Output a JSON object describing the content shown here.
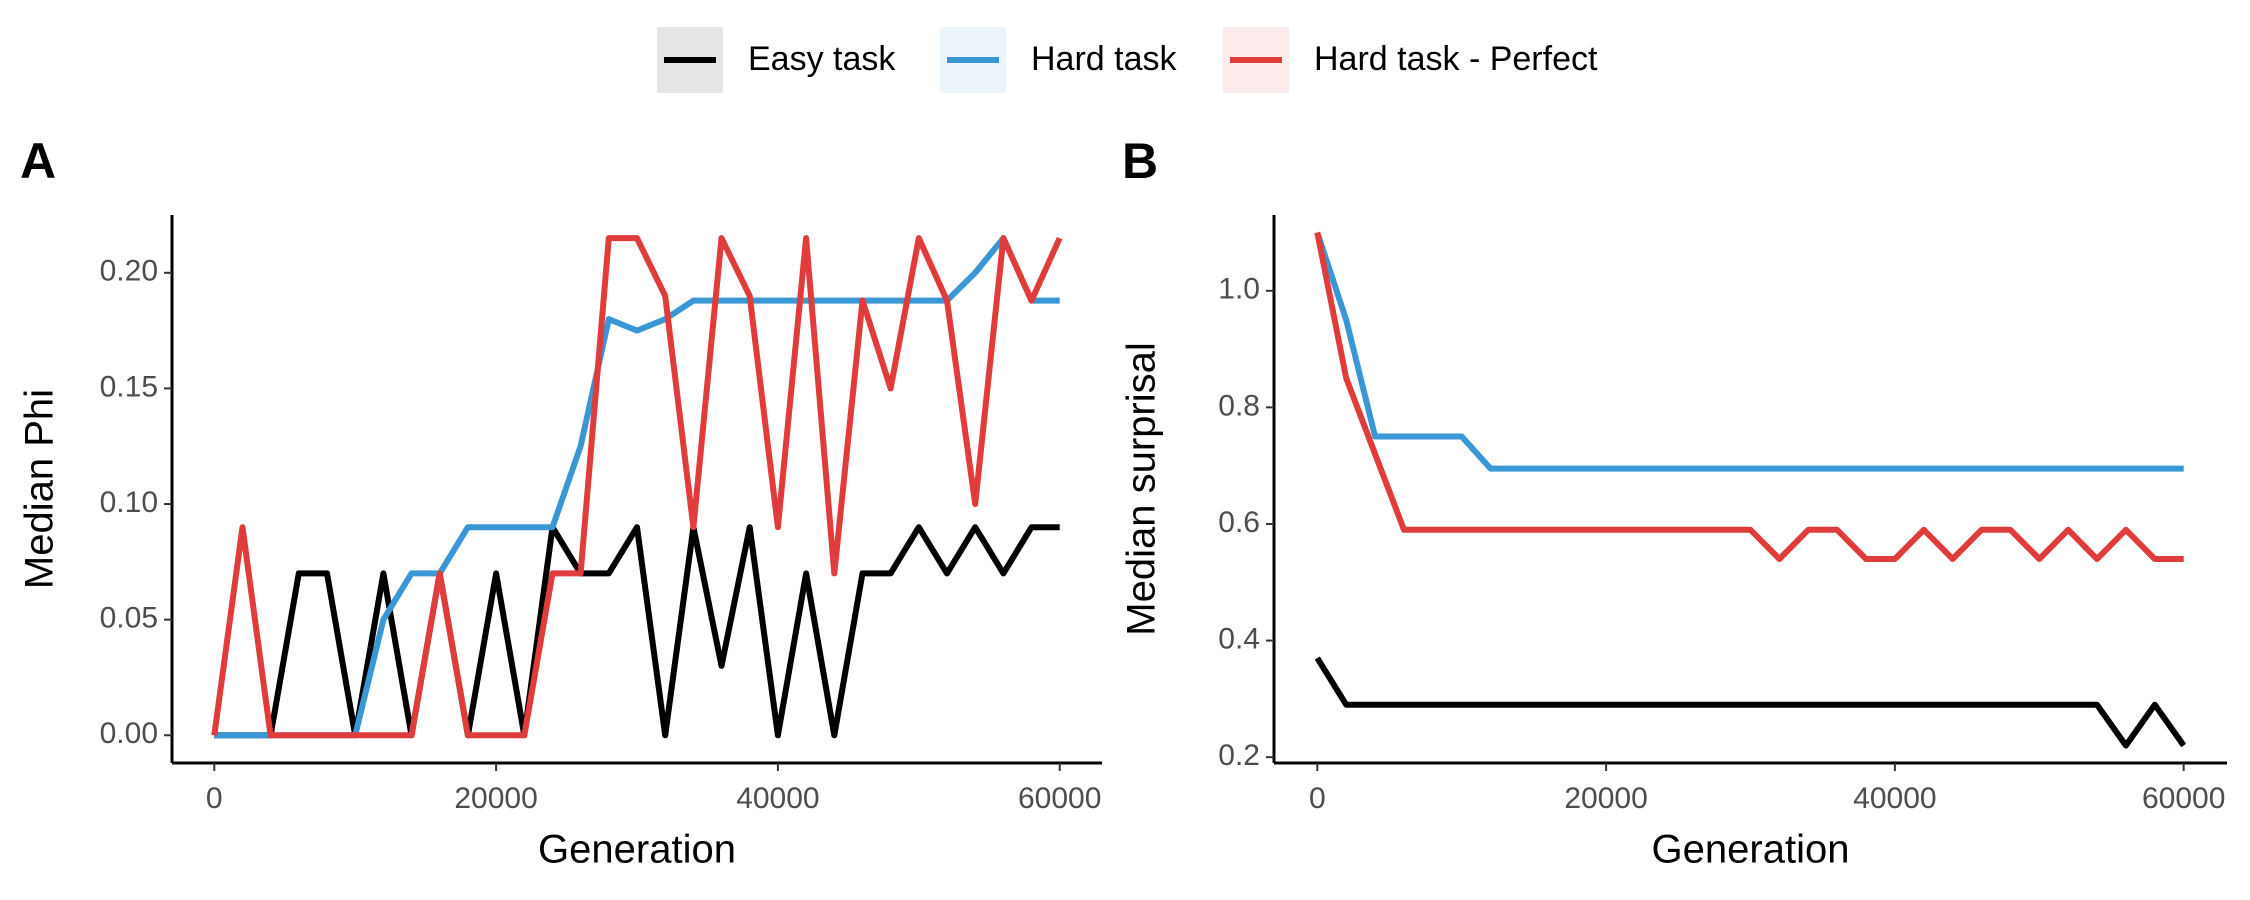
{
  "chart_data": [
    {
      "type": "line",
      "panel_label": "A",
      "xlabel": "Generation",
      "ylabel": "Median Phi",
      "x": [
        0,
        2000,
        4000,
        6000,
        8000,
        10000,
        12000,
        14000,
        16000,
        18000,
        20000,
        22000,
        24000,
        26000,
        28000,
        30000,
        32000,
        34000,
        36000,
        38000,
        40000,
        42000,
        44000,
        46000,
        48000,
        50000,
        52000,
        54000,
        56000,
        58000,
        60000
      ],
      "series": [
        {
          "name": "Easy task",
          "color": "#000000",
          "values": [
            0,
            0,
            0,
            0.07,
            0.07,
            0,
            0.07,
            0,
            0.07,
            0,
            0.07,
            0,
            0.09,
            0.07,
            0.07,
            0.09,
            0,
            0.09,
            0.03,
            0.09,
            0,
            0.07,
            0,
            0.07,
            0.07,
            0.09,
            0.07,
            0.09,
            0.07,
            0.09,
            0.09
          ]
        },
        {
          "name": "Hard task",
          "color": "#3a97d6",
          "values": [
            0,
            0,
            0,
            0,
            0,
            0,
            0.05,
            0.07,
            0.07,
            0.09,
            0.09,
            0.09,
            0.09,
            0.125,
            0.18,
            0.175,
            0.18,
            0.188,
            0.188,
            0.188,
            0.188,
            0.188,
            0.188,
            0.188,
            0.188,
            0.188,
            0.188,
            0.2,
            0.215,
            0.188,
            0.188
          ]
        },
        {
          "name": "Hard task - Perfect",
          "color": "#e03c3c",
          "values": [
            0,
            0.09,
            0,
            0,
            0,
            0,
            0,
            0,
            0.07,
            0,
            0,
            0,
            0.07,
            0.07,
            0.215,
            0.215,
            0.19,
            0.09,
            0.215,
            0.19,
            0.09,
            0.215,
            0.07,
            0.188,
            0.15,
            0.215,
            0.188,
            0.1,
            0.215,
            0.188,
            0.215
          ]
        }
      ],
      "xlim": [
        -3000,
        63000
      ],
      "xticks": [
        0,
        20000,
        40000,
        60000
      ],
      "ylim": [
        -0.012,
        0.225
      ],
      "yticks": [
        {
          "value": 0,
          "label": "0.00"
        },
        {
          "value": 0.05,
          "label": "0.05"
        },
        {
          "value": 0.1,
          "label": "0.10"
        },
        {
          "value": 0.15,
          "label": "0.15"
        },
        {
          "value": 0.2,
          "label": "0.20"
        }
      ]
    },
    {
      "type": "line",
      "panel_label": "B",
      "xlabel": "Generation",
      "ylabel": "Median surprisal",
      "x": [
        0,
        2000,
        4000,
        6000,
        8000,
        10000,
        12000,
        14000,
        16000,
        18000,
        20000,
        22000,
        24000,
        26000,
        28000,
        30000,
        32000,
        34000,
        36000,
        38000,
        40000,
        42000,
        44000,
        46000,
        48000,
        50000,
        52000,
        54000,
        56000,
        58000,
        60000
      ],
      "series": [
        {
          "color": "#000000",
          "values": [
            0.37,
            0.29,
            0.29,
            0.29,
            0.29,
            0.29,
            0.29,
            0.29,
            0.29,
            0.29,
            0.29,
            0.29,
            0.29,
            0.29,
            0.29,
            0.29,
            0.29,
            0.29,
            0.29,
            0.29,
            0.29,
            0.29,
            0.29,
            0.29,
            0.29,
            0.29,
            0.29,
            0.29,
            0.22,
            0.29,
            0.22
          ]
        },
        {
          "color": "#3a97d6",
          "values": [
            1.1,
            0.95,
            0.75,
            0.75,
            0.75,
            0.75,
            0.695,
            0.695,
            0.695,
            0.695,
            0.695,
            0.695,
            0.695,
            0.695,
            0.695,
            0.695,
            0.695,
            0.695,
            0.695,
            0.695,
            0.695,
            0.695,
            0.695,
            0.695,
            0.695,
            0.695,
            0.695,
            0.695,
            0.695,
            0.695,
            0.695
          ]
        },
        {
          "color": "#e03c3c",
          "values": [
            1.1,
            0.85,
            0.72,
            0.59,
            0.59,
            0.59,
            0.59,
            0.59,
            0.59,
            0.59,
            0.59,
            0.59,
            0.59,
            0.59,
            0.59,
            0.59,
            0.54,
            0.59,
            0.59,
            0.54,
            0.54,
            0.59,
            0.54,
            0.59,
            0.59,
            0.54,
            0.59,
            0.54,
            0.59,
            0.54,
            0.54
          ]
        }
      ],
      "xlim": [
        -3000,
        63000
      ],
      "xticks": [
        0,
        20000,
        40000,
        60000
      ],
      "ylim": [
        0.19,
        1.13
      ],
      "yticks": [
        0.2,
        0.4,
        0.6,
        0.8,
        {
          "value": 1.0,
          "label": "1.0"
        }
      ]
    }
  ]
}
